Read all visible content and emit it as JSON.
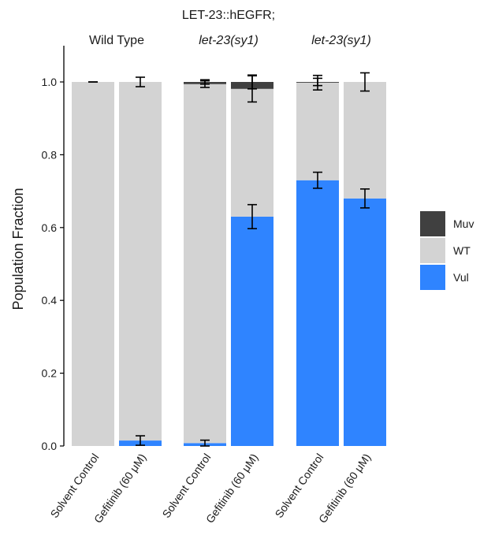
{
  "chart_data": {
    "type": "bar",
    "stacked": true,
    "ylabel": "Population Fraction",
    "xlabel": "",
    "ylim": [
      0,
      1.0
    ],
    "yticks": [
      "0.0",
      "0.2",
      "0.4",
      "0.6",
      "0.8",
      "1.0"
    ],
    "grid": false,
    "legend_position": "right",
    "panels": [
      {
        "title_lines": [],
        "title_italic": "Wild Type",
        "italic": false,
        "categories": [
          "Solvent Control",
          "Gefitinib (60 μM)"
        ],
        "values": {
          "Vul": [
            0.0,
            0.015
          ],
          "WT": [
            1.0,
            0.985
          ],
          "Muv": [
            0.0,
            0.0
          ]
        },
        "errors": [
          [
            {
              "center": 1.0,
              "err": 0.0
            }
          ],
          [
            {
              "center": 1.0,
              "err": 0.013
            },
            {
              "center": 0.015,
              "err": 0.013
            }
          ]
        ]
      },
      {
        "title_lines": [
          "LET-23::hEGFR;"
        ],
        "title_italic": "let-23(sy1)",
        "italic": true,
        "categories": [
          "Solvent Control",
          "Gefitinib (60 μM)"
        ],
        "values": {
          "Vul": [
            0.008,
            0.63
          ],
          "WT": [
            0.986,
            0.351
          ],
          "Muv": [
            0.006,
            0.019
          ]
        },
        "errors": [
          [
            {
              "center": 0.994,
              "err": 0.009
            },
            {
              "center": 1.0,
              "err": 0.006
            },
            {
              "center": 0.008,
              "err": 0.008
            }
          ],
          [
            {
              "center": 0.981,
              "err": 0.036
            },
            {
              "center": 1.0,
              "err": 0.019
            },
            {
              "center": 0.63,
              "err": 0.033
            }
          ]
        ]
      },
      {
        "title_lines": [],
        "title_italic": "let-23(sy1)",
        "italic": true,
        "categories": [
          "Solvent Control",
          "Gefitinib (60 μM)"
        ],
        "values": {
          "Vul": [
            0.73,
            0.68
          ],
          "WT": [
            0.268,
            0.32
          ],
          "Muv": [
            0.002,
            0.0
          ]
        },
        "errors": [
          [
            {
              "center": 0.998,
              "err": 0.02
            },
            {
              "center": 1.0,
              "err": 0.01
            },
            {
              "center": 0.73,
              "err": 0.022
            }
          ],
          [
            {
              "center": 1.0,
              "err": 0.025
            },
            {
              "center": 0.68,
              "err": 0.026
            }
          ]
        ]
      }
    ],
    "series": [
      {
        "name": "Muv",
        "color": "#404040"
      },
      {
        "name": "WT",
        "color": "#d3d3d3"
      },
      {
        "name": "Vul",
        "color": "#2f84ff"
      }
    ]
  }
}
